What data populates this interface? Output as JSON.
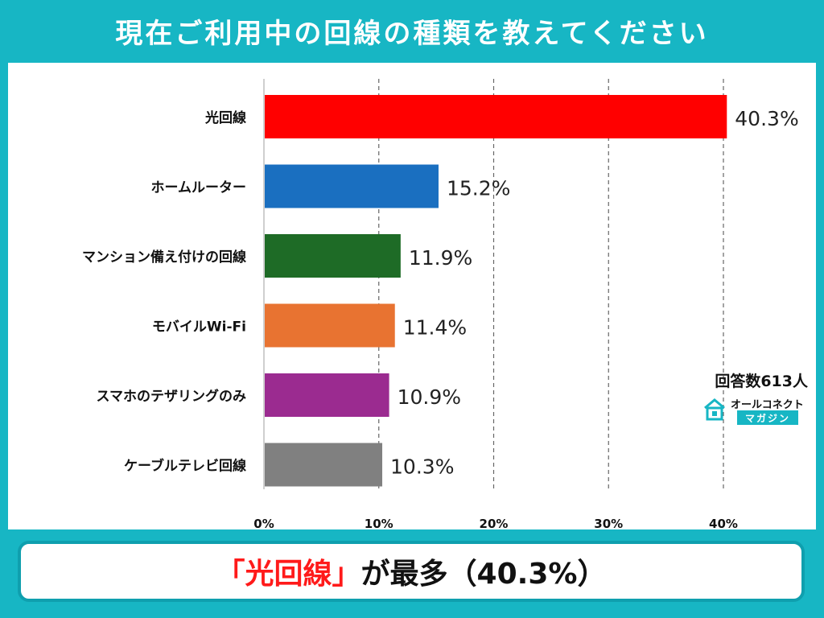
{
  "header": {
    "title": "現在ご利用中の回線の種類を教えてください"
  },
  "chart_data": {
    "type": "bar",
    "orientation": "horizontal",
    "categories": [
      "光回線",
      "ホームルーター",
      "マンション備え付けの回線",
      "モバイルWi-Fi",
      "スマホのテザリングのみ",
      "ケーブルテレビ回線"
    ],
    "values": [
      40.3,
      15.2,
      11.9,
      11.4,
      10.9,
      10.3
    ],
    "value_labels": [
      "40.3%",
      "15.2%",
      "11.9%",
      "11.4%",
      "10.9%",
      "10.3%"
    ],
    "bar_colors": [
      "#ff0000",
      "#1a6fc0",
      "#1e6b26",
      "#e87331",
      "#9b2b90",
      "#808080"
    ],
    "x_ticks": [
      0,
      10,
      20,
      30,
      40
    ],
    "x_tick_labels": [
      "0%",
      "10%",
      "20%",
      "30%",
      "40%"
    ],
    "xlim": [
      0,
      40
    ],
    "grid": "vertical-dashed"
  },
  "note": {
    "respondents": "回答数613人"
  },
  "logo": {
    "top_text": "オールコネクト",
    "bottom_text": "マガジン"
  },
  "footer": {
    "highlight": "「光回線」",
    "rest": "が最多（40.3%）"
  },
  "colors": {
    "background": "#17b6c4",
    "highlight": "#ff1a1a"
  }
}
